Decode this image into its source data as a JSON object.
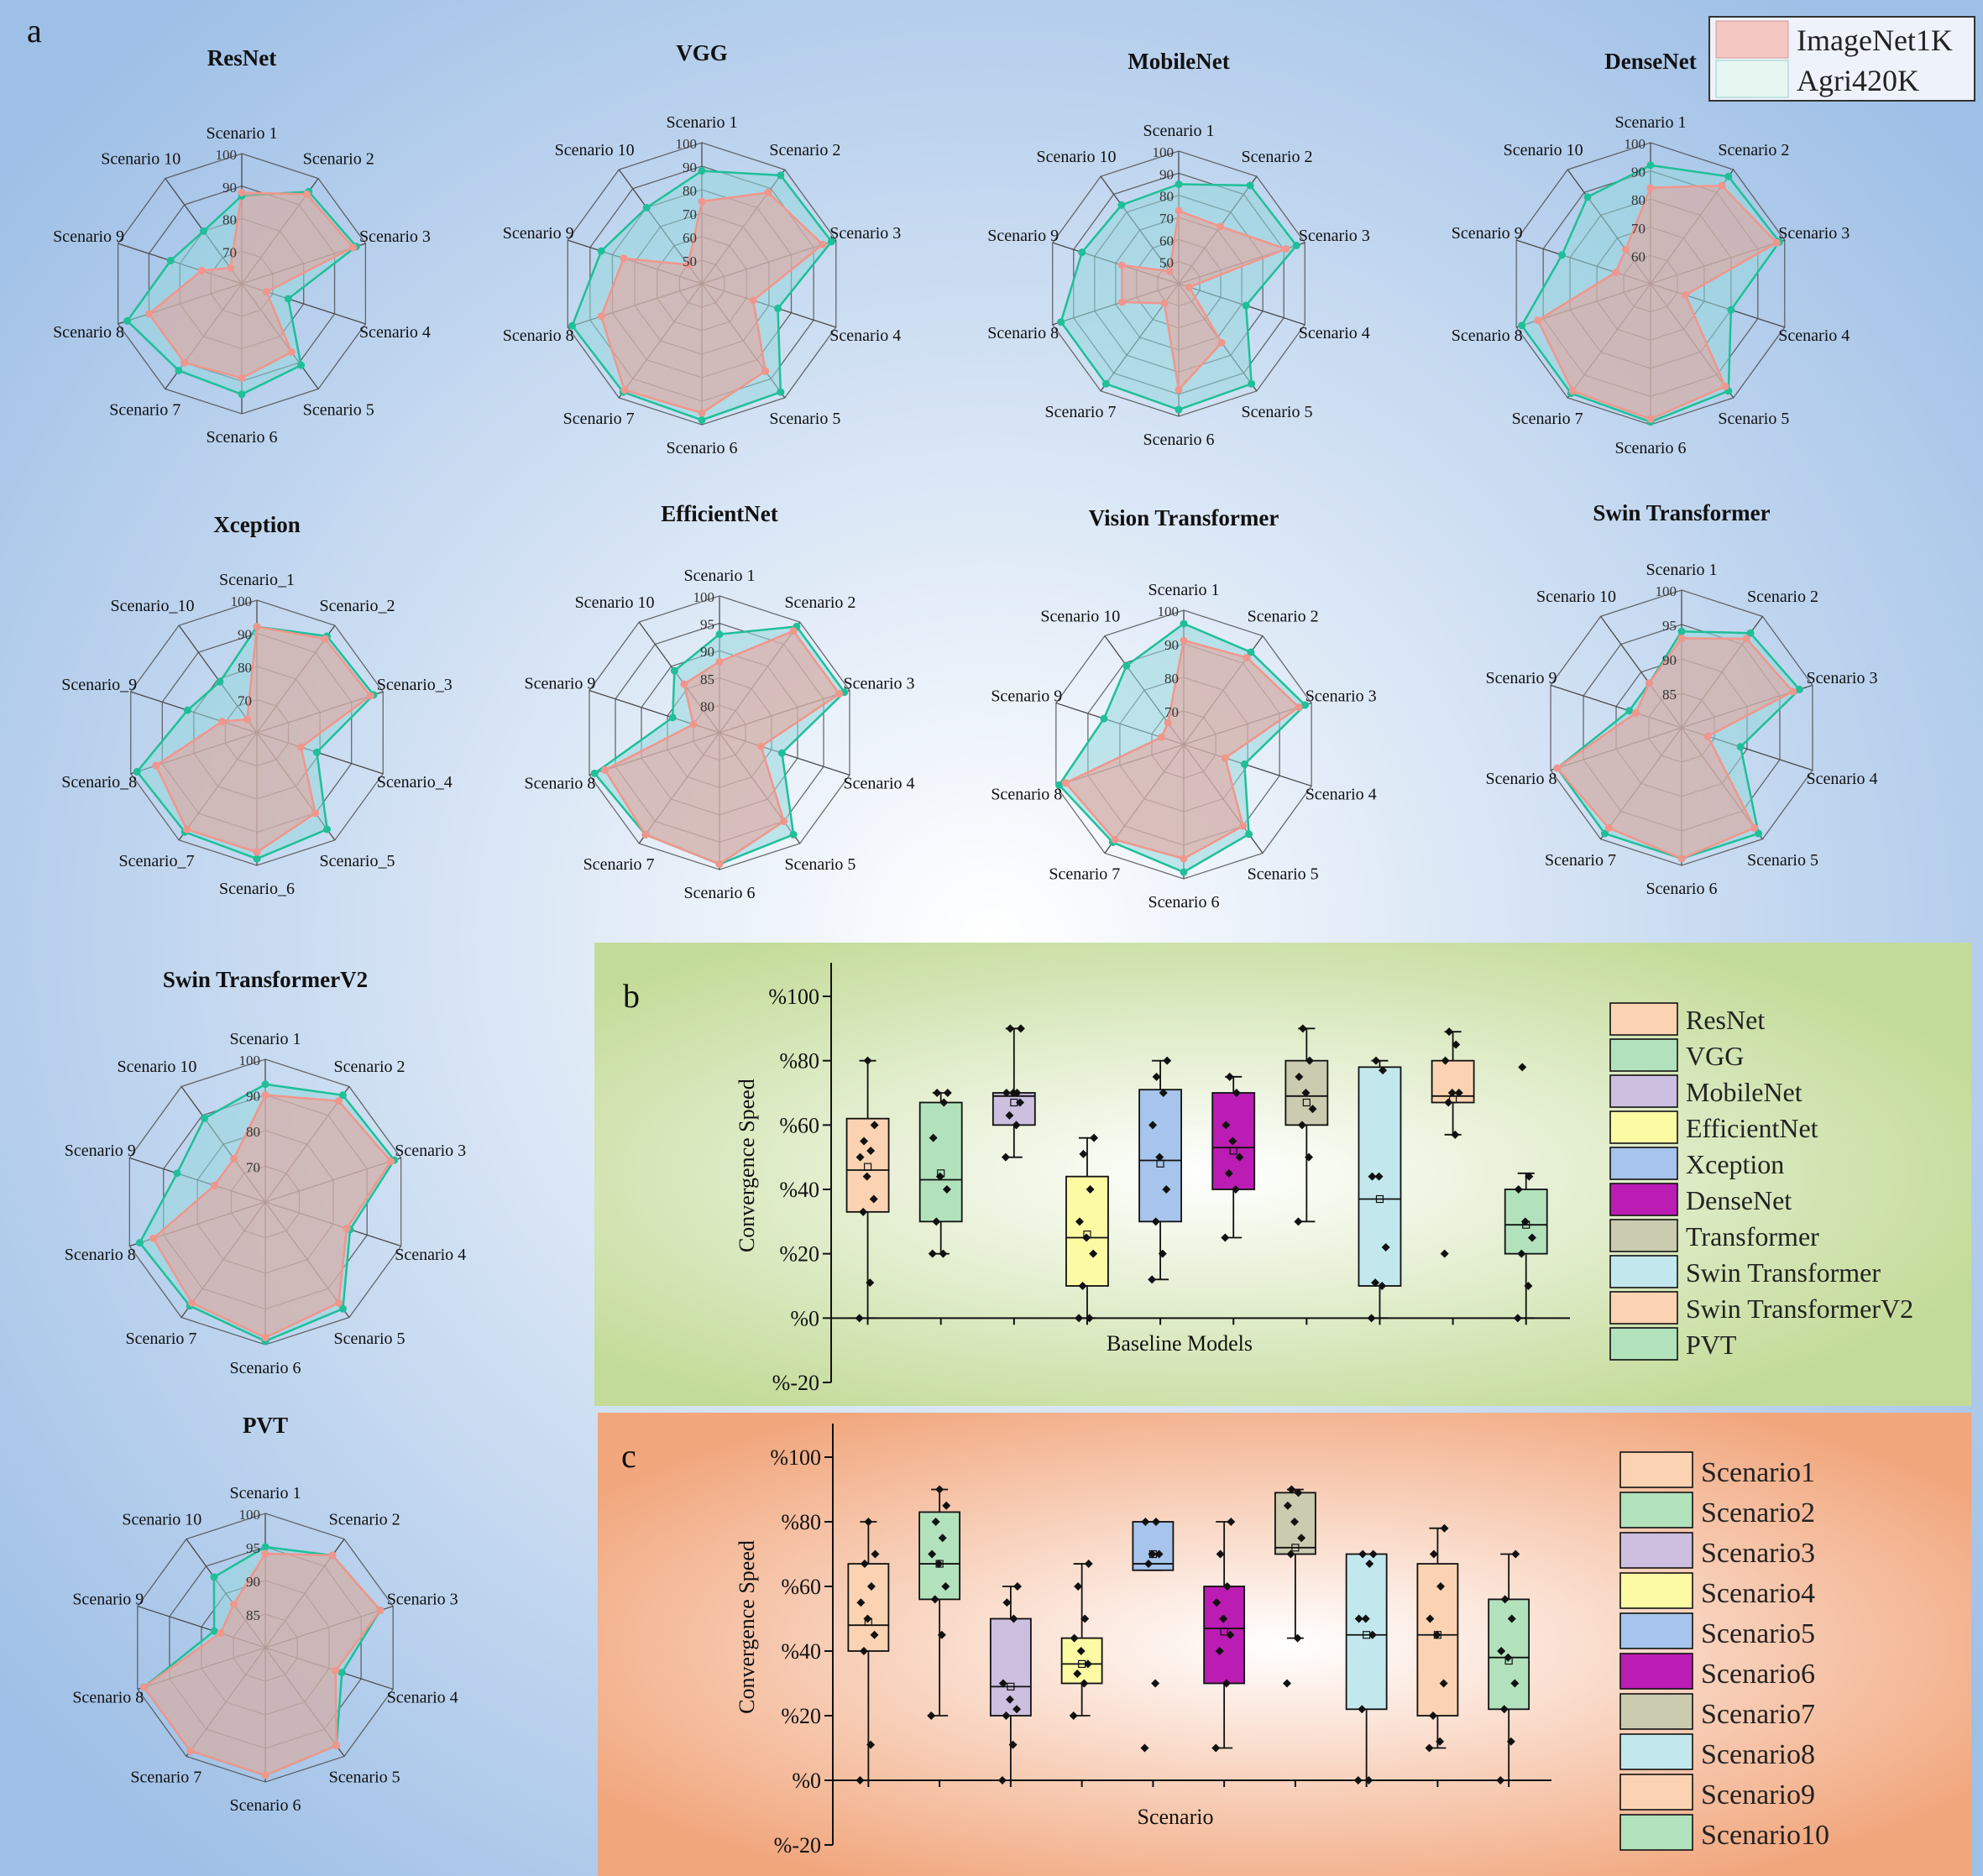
{
  "panel_letters": {
    "a": "a",
    "b": "b",
    "c": "c"
  },
  "legend_a": {
    "items": [
      {
        "label": "ImageNet1K",
        "color": "#f4c7c3"
      },
      {
        "label": "Agri420K",
        "color": "#e6f7f1"
      }
    ]
  },
  "colors": {
    "imagenet_line": "#f0968c",
    "imagenet_fill": "rgba(236,160,150,0.55)",
    "agri_line": "#1fbf99",
    "agri_fill": "rgba(150,215,220,0.55)",
    "grid": "#4a4a4a",
    "panel_b_bg": "#c6dd9c",
    "panel_c_bg": "#f2aa80",
    "panel_a_bg": "#a9c8e9"
  },
  "chart_data": [
    {
      "type": "radar",
      "id": "resnet",
      "title": "ResNet",
      "axes": [
        "Scenario 1",
        "Scenario 2",
        "Scenario 3",
        "Scenario 4",
        "Scenario 5",
        "Scenario 6",
        "Scenario 7",
        "Scenario 8",
        "Scenario 9",
        "Scenario 10"
      ],
      "range": [
        60,
        100
      ],
      "tick_labels": [
        "70",
        "80",
        "90",
        "100"
      ],
      "series": [
        {
          "name": "ImageNet1K",
          "values": [
            88,
            94,
            96,
            68,
            86,
            89,
            90,
            90,
            73,
            66
          ]
        },
        {
          "name": "Agri420K",
          "values": [
            87,
            95,
            97,
            75,
            91,
            94,
            93,
            97,
            83,
            80
          ]
        }
      ]
    },
    {
      "type": "radar",
      "id": "vgg",
      "title": "VGG",
      "axes": [
        "Scenario 1",
        "Scenario 2",
        "Scenario 3",
        "Scenario 4",
        "Scenario 5",
        "Scenario 6",
        "Scenario 7",
        "Scenario 8",
        "Scenario 9",
        "Scenario 10"
      ],
      "range": [
        40,
        100
      ],
      "tick_labels": [
        "50",
        "60",
        "70",
        "80",
        "90",
        "100"
      ],
      "series": [
        {
          "name": "ImageNet1K",
          "values": [
            75,
            88,
            94,
            63,
            86,
            95,
            96,
            85,
            75,
            50
          ]
        },
        {
          "name": "Agri420K",
          "values": [
            88,
            97,
            98,
            74,
            97,
            98,
            97,
            98,
            85,
            80
          ]
        }
      ]
    },
    {
      "type": "radar",
      "id": "mobilenet",
      "title": "MobileNet",
      "axes": [
        "Scenario 1",
        "Scenario 2",
        "Scenario 3",
        "Scenario 4",
        "Scenario 5",
        "Scenario 6",
        "Scenario 7",
        "Scenario 8",
        "Scenario 9",
        "Scenario 10"
      ],
      "range": [
        40,
        100
      ],
      "tick_labels": [
        "50",
        "60",
        "70",
        "80",
        "90",
        "100"
      ],
      "series": [
        {
          "name": "ImageNet1K",
          "values": [
            73,
            72,
            91,
            45,
            73,
            88,
            51,
            67,
            67,
            47
          ]
        },
        {
          "name": "Agri420K",
          "values": [
            85,
            95,
            96,
            72,
            96,
            97,
            96,
            96,
            86,
            84
          ]
        }
      ]
    },
    {
      "type": "radar",
      "id": "densenet",
      "title": "DenseNet",
      "axes": [
        "Scenario 1",
        "Scenario 2",
        "Scenario 3",
        "Scenario 4",
        "Scenario 5",
        "Scenario 6",
        "Scenario 7",
        "Scenario 8",
        "Scenario 9",
        "Scenario 10"
      ],
      "range": [
        50,
        100
      ],
      "tick_labels": [
        "60",
        "70",
        "80",
        "90",
        "100"
      ],
      "series": [
        {
          "name": "ImageNet1K",
          "values": [
            84,
            93,
            97,
            63,
            95,
            98,
            97,
            92,
            63,
            65
          ]
        },
        {
          "name": "Agri420K",
          "values": [
            92,
            97,
            98,
            80,
            97,
            99,
            98,
            98,
            83,
            88
          ]
        }
      ]
    },
    {
      "type": "radar",
      "id": "xception",
      "title": "Xception",
      "axes": [
        "Scenario_1",
        "Scenario_2",
        "Scenario_3",
        "Scenario_4",
        "Scenario_5",
        "Scenario_6",
        "Scenario_7",
        "Scenario_8",
        "Scenario_9",
        "Scenario_10"
      ],
      "range": [
        60,
        100
      ],
      "tick_labels": [
        "70",
        "80",
        "90",
        "100"
      ],
      "series": [
        {
          "name": "ImageNet1K",
          "values": [
            92,
            95,
            96,
            74,
            90,
            96,
            96,
            92,
            71,
            65
          ]
        },
        {
          "name": "Agri420K",
          "values": [
            92,
            96,
            97,
            79,
            96,
            98,
            97,
            98,
            82,
            79
          ]
        }
      ]
    },
    {
      "type": "radar",
      "id": "efficientnet",
      "title": "EfficientNet",
      "axes": [
        "Scenario 1",
        "Scenario 2",
        "Scenario 3",
        "Scenario 4",
        "Scenario 5",
        "Scenario 6",
        "Scenario 7",
        "Scenario 8",
        "Scenario 9",
        "Scenario 10"
      ],
      "range": [
        75,
        100
      ],
      "tick_labels": [
        "80",
        "85",
        "90",
        "95",
        "100"
      ],
      "series": [
        {
          "name": "ImageNet1K",
          "values": [
            88,
            98,
            98,
            83,
            95,
            99,
            98,
            97,
            80,
            86
          ]
        },
        {
          "name": "Agri420K",
          "values": [
            93,
            99,
            99,
            87,
            98,
            99,
            98,
            99,
            84,
            89
          ]
        }
      ]
    },
    {
      "type": "radar",
      "id": "vision-transformer",
      "title": "Vision Transformer",
      "axes": [
        "Scenario 1",
        "Scenario 2",
        "Scenario 3",
        "Scenario 4",
        "Scenario 5",
        "Scenario 6",
        "Scenario 7",
        "Scenario 8",
        "Scenario 9",
        "Scenario 10"
      ],
      "range": [
        60,
        100
      ],
      "tick_labels": [
        "70",
        "80",
        "90",
        "100"
      ],
      "series": [
        {
          "name": "ImageNet1K",
          "values": [
            91,
            92,
            96,
            73,
            90,
            94,
            95,
            97,
            67,
            68
          ]
        },
        {
          "name": "Agri420K",
          "values": [
            96,
            94,
            98,
            79,
            93,
            98,
            96,
            99,
            85,
            89
          ]
        }
      ]
    },
    {
      "type": "radar",
      "id": "swin-transformer",
      "title": "Swin Transformer",
      "axes": [
        "Scenario 1",
        "Scenario 2",
        "Scenario 3",
        "Scenario 4",
        "Scenario 5",
        "Scenario 6",
        "Scenario 7",
        "Scenario 8",
        "Scenario 9",
        "Scenario 10"
      ],
      "range": [
        80,
        100
      ],
      "tick_labels": [
        "85",
        "90",
        "95",
        "100"
      ],
      "series": [
        {
          "name": "ImageNet1K",
          "values": [
            93,
            96,
            97,
            84,
            98,
            99,
            98,
            99,
            87,
            88
          ]
        },
        {
          "name": "Agri420K",
          "values": [
            94,
            97,
            98,
            89,
            99,
            99,
            99,
            99,
            88,
            88
          ]
        }
      ]
    },
    {
      "type": "radar",
      "id": "swin-transformerv2",
      "title": "Swin TransformerV2",
      "axes": [
        "Scenario 1",
        "Scenario 2",
        "Scenario 3",
        "Scenario 4",
        "Scenario 5",
        "Scenario 6",
        "Scenario 7",
        "Scenario 8",
        "Scenario 9",
        "Scenario 10"
      ],
      "range": [
        60,
        100
      ],
      "tick_labels": [
        "70",
        "80",
        "90",
        "100"
      ],
      "series": [
        {
          "name": "ImageNet1K",
          "values": [
            90,
            95,
            97,
            84,
            95,
            98,
            95,
            93,
            75,
            75
          ]
        },
        {
          "name": "Agri420K",
          "values": [
            93,
            97,
            98,
            85,
            97,
            99,
            96,
            97,
            86,
            89
          ]
        }
      ]
    },
    {
      "type": "radar",
      "id": "pvt",
      "title": "PVT",
      "axes": [
        "Scenario 1",
        "Scenario 2",
        "Scenario 3",
        "Scenario 4",
        "Scenario 5",
        "Scenario 6",
        "Scenario 7",
        "Scenario 8",
        "Scenario 9",
        "Scenario 10"
      ],
      "range": [
        80,
        100
      ],
      "tick_labels": [
        "85",
        "90",
        "95",
        "100"
      ],
      "series": [
        {
          "name": "ImageNet1K",
          "values": [
            94,
            97,
            98,
            91,
            98,
            99,
            99,
            99,
            87,
            88
          ]
        },
        {
          "name": "Agri420K",
          "values": [
            95,
            97,
            98,
            92,
            98,
            99,
            99,
            99,
            88,
            93
          ]
        }
      ]
    },
    {
      "type": "box",
      "id": "baseline-box",
      "xlabel": "Baseline Models",
      "ylabel": "Convergence Speed",
      "ylim": [
        -20,
        100
      ],
      "yticks": [
        "%-20",
        "%0",
        "%20",
        "%40",
        "%60",
        "%80",
        "%100"
      ],
      "groups": [
        {
          "name": "ResNet",
          "color": "#fcd3b2",
          "q1": 33,
          "median": 46,
          "q3": 62,
          "mean": 47,
          "whisker_low": 0,
          "whisker_high": 80,
          "points": [
            0,
            11,
            33,
            37,
            44,
            50,
            52,
            55,
            60,
            80
          ]
        },
        {
          "name": "VGG",
          "color": "#b2e2bc",
          "q1": 30,
          "median": 43,
          "q3": 67,
          "mean": 45,
          "whisker_low": 20,
          "whisker_high": 70,
          "points": [
            20,
            20,
            30,
            40,
            44,
            56,
            67,
            70,
            70
          ]
        },
        {
          "name": "MobileNet",
          "color": "#cdbfdf",
          "q1": 60,
          "median": 69,
          "q3": 70,
          "mean": 67,
          "whisker_low": 50,
          "whisker_high": 90,
          "points": [
            50,
            60,
            63,
            67,
            70,
            70,
            70,
            90,
            90
          ]
        },
        {
          "name": "EfficientNet",
          "color": "#fdfaa4",
          "q1": 10,
          "median": 25,
          "q3": 44,
          "mean": 26,
          "whisker_low": 0,
          "whisker_high": 56,
          "points": [
            0,
            0,
            10,
            20,
            25,
            30,
            40,
            51,
            56
          ]
        },
        {
          "name": "Xception",
          "color": "#a6c4ec",
          "q1": 30,
          "median": 49,
          "q3": 71,
          "mean": 48,
          "whisker_low": 12,
          "whisker_high": 80,
          "points": [
            12,
            20,
            30,
            40,
            50,
            60,
            70,
            75,
            80
          ]
        },
        {
          "name": "DenseNet",
          "color": "#bb1cb3",
          "q1": 40,
          "median": 53,
          "q3": 70,
          "mean": 52,
          "whisker_low": 25,
          "whisker_high": 75,
          "points": [
            25,
            40,
            45,
            50,
            55,
            60,
            70,
            75
          ]
        },
        {
          "name": "Transformer",
          "color": "#cbcbb0",
          "q1": 60,
          "median": 69,
          "q3": 80,
          "mean": 67,
          "whisker_low": 30,
          "whisker_high": 90,
          "points": [
            30,
            50,
            60,
            65,
            70,
            75,
            80,
            90
          ]
        },
        {
          "name": "Swin Transformer",
          "color": "#c2e8ee",
          "q1": 10,
          "median": 37,
          "q3": 78,
          "mean": 37,
          "whisker_low": 0,
          "whisker_high": 80,
          "points": [
            0,
            10,
            11,
            22,
            44,
            44,
            77,
            80
          ]
        },
        {
          "name": "Swin TransformerV2",
          "color": "#fcd3b2",
          "q1": 67,
          "median": 69,
          "q3": 80,
          "mean": 68,
          "whisker_low": 57,
          "whisker_high": 89,
          "points": [
            20,
            57,
            67,
            70,
            70,
            80,
            85,
            89
          ]
        },
        {
          "name": "PVT",
          "color": "#b2e2bc",
          "q1": 20,
          "median": 29,
          "q3": 40,
          "mean": 29,
          "whisker_low": 0,
          "whisker_high": 45,
          "points": [
            0,
            10,
            20,
            25,
            30,
            40,
            44,
            78
          ]
        }
      ]
    },
    {
      "type": "box",
      "id": "scenario-box",
      "xlabel": "Scenario",
      "ylabel": "Convergence Speed",
      "ylim": [
        -20,
        100
      ],
      "yticks": [
        "%-20",
        "%0",
        "%20",
        "%40",
        "%60",
        "%80",
        "%100"
      ],
      "groups": [
        {
          "name": "Scenario1",
          "color": "#fcd3b2",
          "q1": 40,
          "median": 48,
          "q3": 67,
          "mean": 49,
          "whisker_low": 0,
          "whisker_high": 80,
          "points": [
            0,
            11,
            40,
            45,
            50,
            55,
            60,
            67,
            70,
            80
          ]
        },
        {
          "name": "Scenario2",
          "color": "#b2e2bc",
          "q1": 56,
          "median": 67,
          "q3": 83,
          "mean": 67,
          "whisker_low": 20,
          "whisker_high": 90,
          "points": [
            20,
            45,
            56,
            60,
            67,
            70,
            75,
            80,
            85,
            90
          ]
        },
        {
          "name": "Scenario3",
          "color": "#cdbfdf",
          "q1": 20,
          "median": 29,
          "q3": 50,
          "mean": 29,
          "whisker_low": 0,
          "whisker_high": 60,
          "points": [
            0,
            11,
            20,
            22,
            25,
            30,
            50,
            55,
            60
          ]
        },
        {
          "name": "Scenario4",
          "color": "#fdfaa4",
          "q1": 30,
          "median": 36,
          "q3": 44,
          "mean": 36,
          "whisker_low": 20,
          "whisker_high": 67,
          "points": [
            20,
            30,
            33,
            36,
            40,
            44,
            50,
            60,
            67
          ]
        },
        {
          "name": "Scenario5",
          "color": "#a6c4ec",
          "q1": 65,
          "median": 67,
          "q3": 80,
          "mean": 70,
          "whisker_low": 65,
          "whisker_high": 80,
          "points": [
            10,
            30,
            67,
            70,
            70,
            80,
            80
          ]
        },
        {
          "name": "Scenario6",
          "color": "#bb1cb3",
          "q1": 30,
          "median": 47,
          "q3": 60,
          "mean": 46,
          "whisker_low": 10,
          "whisker_high": 80,
          "points": [
            10,
            30,
            40,
            45,
            50,
            55,
            60,
            70,
            80
          ]
        },
        {
          "name": "Scenario7",
          "color": "#cbcbb0",
          "q1": 70,
          "median": 72,
          "q3": 89,
          "mean": 72,
          "whisker_low": 44,
          "whisker_high": 90,
          "points": [
            30,
            44,
            70,
            75,
            80,
            85,
            89,
            90
          ]
        },
        {
          "name": "Scenario8",
          "color": "#c2e8ee",
          "q1": 22,
          "median": 45,
          "q3": 70,
          "mean": 45,
          "whisker_low": 0,
          "whisker_high": 70,
          "points": [
            0,
            0,
            22,
            45,
            50,
            50,
            67,
            70,
            70
          ]
        },
        {
          "name": "Scenario9",
          "color": "#fcd3b2",
          "q1": 20,
          "median": 45,
          "q3": 67,
          "mean": 45,
          "whisker_low": 10,
          "whisker_high": 78,
          "points": [
            10,
            12,
            20,
            30,
            45,
            50,
            60,
            70,
            78
          ]
        },
        {
          "name": "Scenario10",
          "color": "#b2e2bc",
          "q1": 22,
          "median": 38,
          "q3": 56,
          "mean": 37,
          "whisker_low": 0,
          "whisker_high": 70,
          "points": [
            0,
            12,
            22,
            30,
            38,
            40,
            50,
            56,
            70
          ]
        }
      ]
    }
  ]
}
